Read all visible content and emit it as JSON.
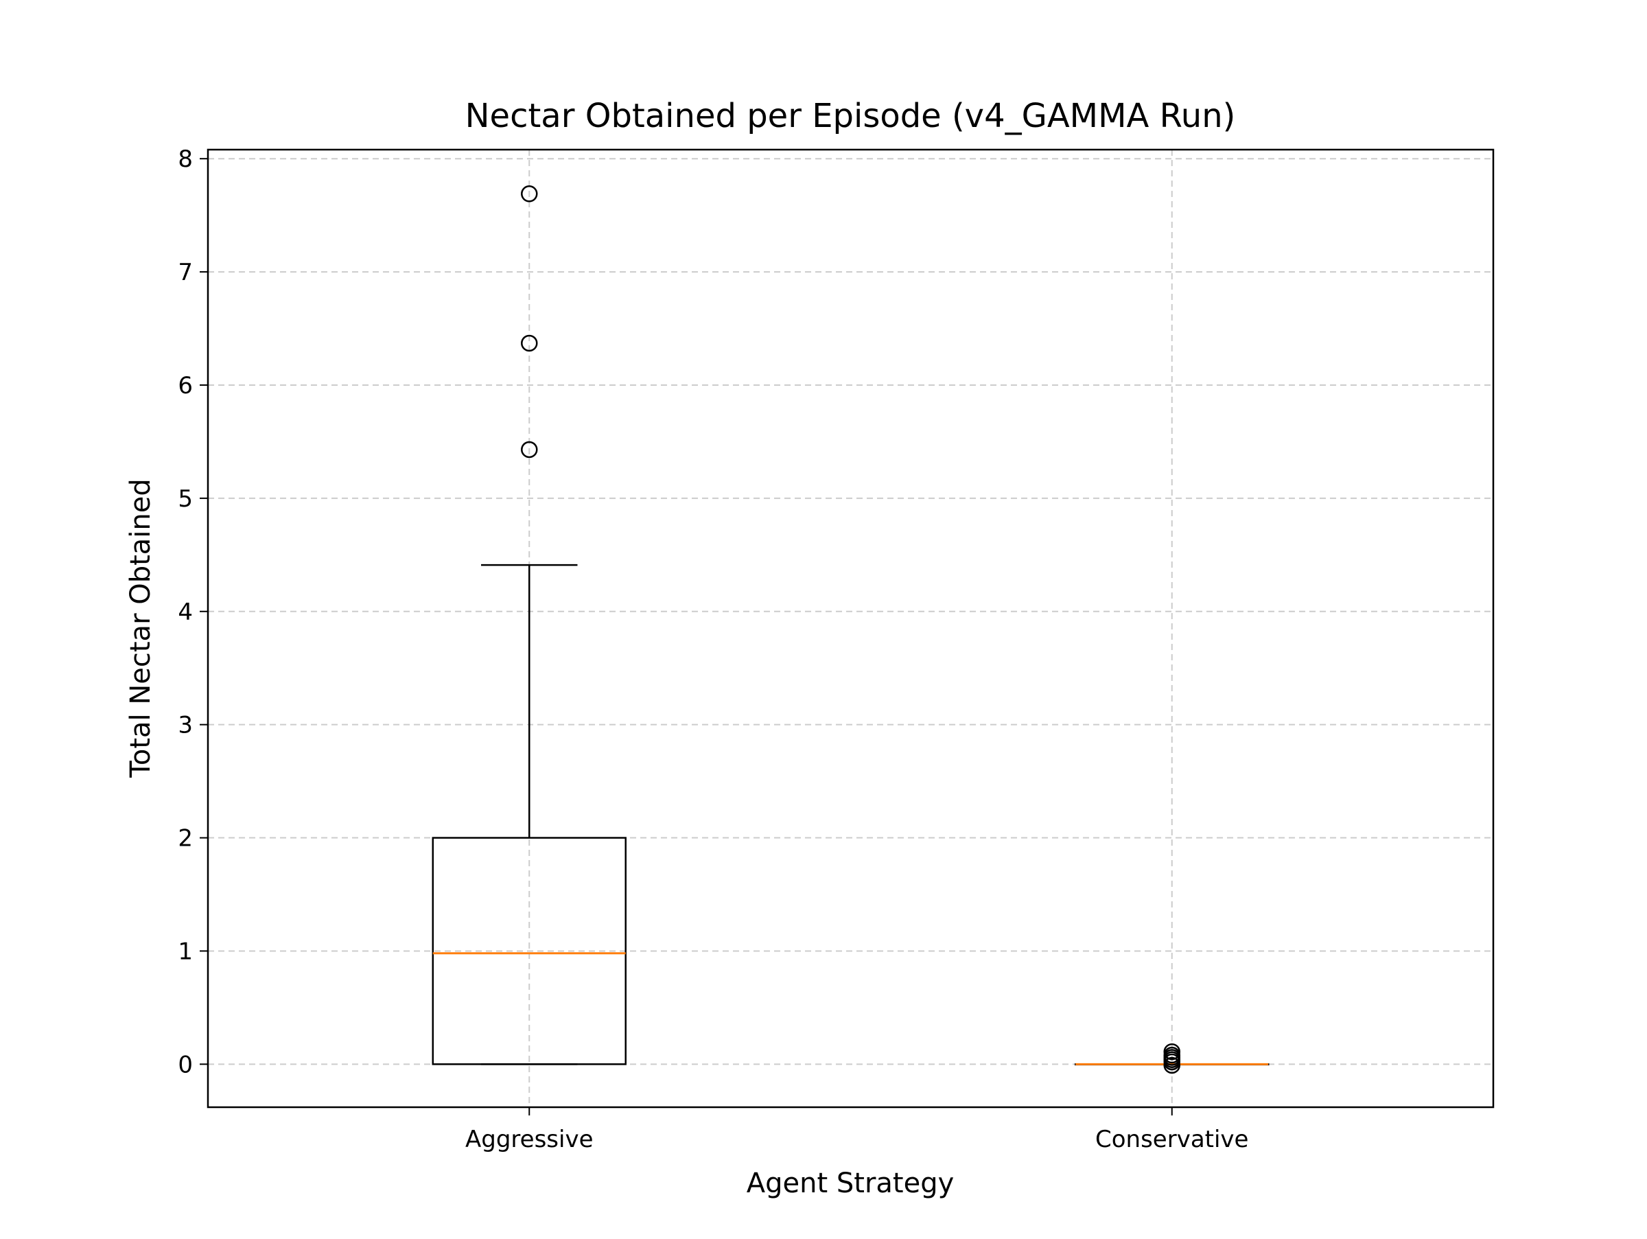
{
  "chart_data": {
    "type": "box",
    "title": "Nectar Obtained per Episode (v4_GAMMA Run)",
    "xlabel": "Agent Strategy",
    "ylabel": "Total Nectar Obtained",
    "ylim": [
      -0.38,
      8.08
    ],
    "yticks": [
      0,
      1,
      2,
      3,
      4,
      5,
      6,
      7,
      8
    ],
    "grid": true,
    "categories": [
      "Aggressive",
      "Conservative"
    ],
    "boxes": [
      {
        "category": "Aggressive",
        "whisker_low": 0,
        "q1": 0,
        "median": 0.98,
        "q3": 2.0,
        "whisker_high": 4.41,
        "outliers": [
          5.43,
          6.37,
          7.69
        ]
      },
      {
        "category": "Conservative",
        "whisker_low": 0,
        "q1": 0,
        "median": 0,
        "q3": 0,
        "whisker_high": 0,
        "outliers": [
          -0.01,
          0.02,
          0.04,
          0.06,
          0.08,
          0.11
        ]
      }
    ],
    "colors": {
      "box": "#000000",
      "median": "#ff7f0e",
      "grid": "#cccccc",
      "outlier": "#000000"
    }
  }
}
